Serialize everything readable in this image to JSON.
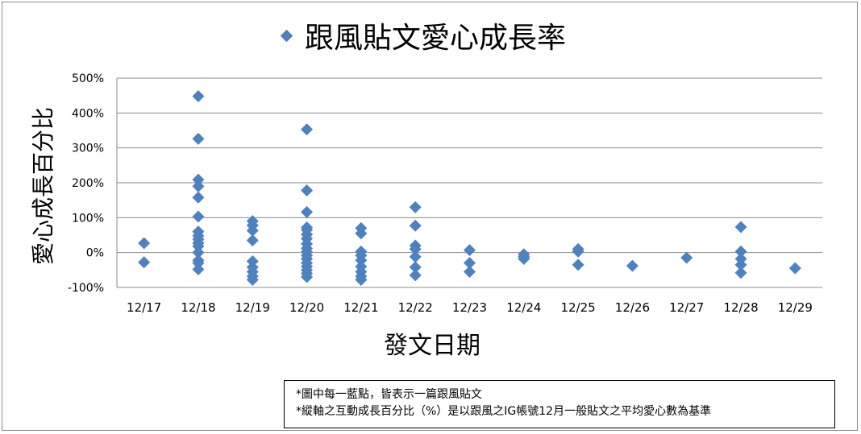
{
  "chart_data": {
    "type": "scatter",
    "title": "跟風貼文愛心成長率",
    "xlabel": "發文日期",
    "ylabel": "愛心成長百分比",
    "categories": [
      "12/17",
      "12/18",
      "12/19",
      "12/20",
      "12/21",
      "12/22",
      "12/23",
      "12/24",
      "12/25",
      "12/26",
      "12/27",
      "12/28",
      "12/29"
    ],
    "y_ticks": [
      "500%",
      "400%",
      "300%",
      "200%",
      "100%",
      "0%",
      "-100%"
    ],
    "ylim": [
      -100,
      500
    ],
    "grid": true,
    "legend_position": "top-left of title",
    "marker_color": "#4f81bd",
    "series": [
      {
        "name": "",
        "points": [
          {
            "x": "12/17",
            "y": 27
          },
          {
            "x": "12/17",
            "y": -28
          },
          {
            "x": "12/18",
            "y": 448
          },
          {
            "x": "12/18",
            "y": 326
          },
          {
            "x": "12/18",
            "y": 209
          },
          {
            "x": "12/18",
            "y": 190
          },
          {
            "x": "12/18",
            "y": 158
          },
          {
            "x": "12/18",
            "y": 103
          },
          {
            "x": "12/18",
            "y": 60
          },
          {
            "x": "12/18",
            "y": 48
          },
          {
            "x": "12/18",
            "y": 38
          },
          {
            "x": "12/18",
            "y": 27
          },
          {
            "x": "12/18",
            "y": 18
          },
          {
            "x": "12/18",
            "y": 0
          },
          {
            "x": "12/18",
            "y": -22
          },
          {
            "x": "12/18",
            "y": -30
          },
          {
            "x": "12/18",
            "y": -48
          },
          {
            "x": "12/19",
            "y": 90
          },
          {
            "x": "12/19",
            "y": 78
          },
          {
            "x": "12/19",
            "y": 63
          },
          {
            "x": "12/19",
            "y": 35
          },
          {
            "x": "12/19",
            "y": -25
          },
          {
            "x": "12/19",
            "y": -42
          },
          {
            "x": "12/19",
            "y": -55
          },
          {
            "x": "12/19",
            "y": -68
          },
          {
            "x": "12/19",
            "y": -78
          },
          {
            "x": "12/20",
            "y": 353
          },
          {
            "x": "12/20",
            "y": 178
          },
          {
            "x": "12/20",
            "y": 116
          },
          {
            "x": "12/20",
            "y": 72
          },
          {
            "x": "12/20",
            "y": 65
          },
          {
            "x": "12/20",
            "y": 52
          },
          {
            "x": "12/20",
            "y": 40
          },
          {
            "x": "12/20",
            "y": 25
          },
          {
            "x": "12/20",
            "y": 12
          },
          {
            "x": "12/20",
            "y": 2
          },
          {
            "x": "12/20",
            "y": -8
          },
          {
            "x": "12/20",
            "y": -18
          },
          {
            "x": "12/20",
            "y": -30
          },
          {
            "x": "12/20",
            "y": -40
          },
          {
            "x": "12/20",
            "y": -50
          },
          {
            "x": "12/20",
            "y": -60
          },
          {
            "x": "12/20",
            "y": -70
          },
          {
            "x": "12/21",
            "y": 70
          },
          {
            "x": "12/21",
            "y": 55
          },
          {
            "x": "12/21",
            "y": 3
          },
          {
            "x": "12/21",
            "y": -8
          },
          {
            "x": "12/21",
            "y": -22
          },
          {
            "x": "12/21",
            "y": -40
          },
          {
            "x": "12/21",
            "y": -55
          },
          {
            "x": "12/21",
            "y": -68
          },
          {
            "x": "12/21",
            "y": -78
          },
          {
            "x": "12/22",
            "y": 130
          },
          {
            "x": "12/22",
            "y": 77
          },
          {
            "x": "12/22",
            "y": 20
          },
          {
            "x": "12/22",
            "y": 10
          },
          {
            "x": "12/22",
            "y": -12
          },
          {
            "x": "12/22",
            "y": -42
          },
          {
            "x": "12/22",
            "y": -65
          },
          {
            "x": "12/23",
            "y": 7
          },
          {
            "x": "12/23",
            "y": -30
          },
          {
            "x": "12/23",
            "y": -55
          },
          {
            "x": "12/24",
            "y": -5
          },
          {
            "x": "12/24",
            "y": -12
          },
          {
            "x": "12/24",
            "y": -18
          },
          {
            "x": "12/25",
            "y": 10
          },
          {
            "x": "12/25",
            "y": 3
          },
          {
            "x": "12/25",
            "y": -35
          },
          {
            "x": "12/26",
            "y": -38
          },
          {
            "x": "12/27",
            "y": -15
          },
          {
            "x": "12/28",
            "y": 73
          },
          {
            "x": "12/28",
            "y": 3
          },
          {
            "x": "12/28",
            "y": -18
          },
          {
            "x": "12/28",
            "y": -35
          },
          {
            "x": "12/28",
            "y": -58
          },
          {
            "x": "12/29",
            "y": -45
          }
        ]
      }
    ]
  },
  "notes": {
    "line1": "*圖中每一藍點，皆表示一篇跟風貼文",
    "line2": "*縱軸之互動成長百分比（%）是以跟風之IG帳號12月一般貼文之平均愛心數為基準"
  }
}
